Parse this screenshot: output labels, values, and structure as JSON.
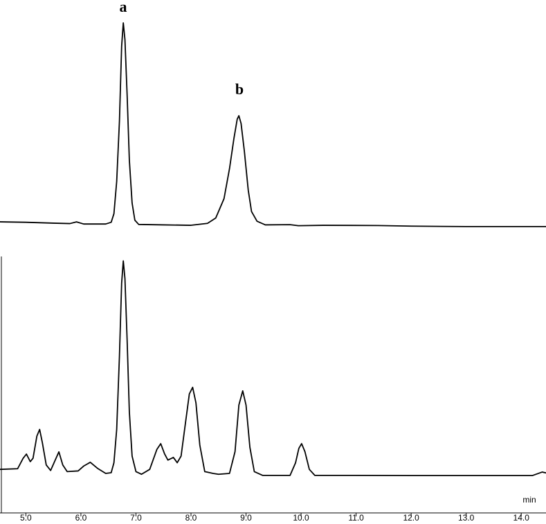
{
  "chart_data": [
    {
      "type": "line",
      "xlim": [
        4.53,
        14.45
      ],
      "ylim": [
        0,
        100
      ],
      "annotations": [
        "a",
        "b"
      ],
      "series": [
        {
          "color": "#000000",
          "x": [
            4.53,
            5.0,
            5.5,
            5.8,
            5.92,
            6.05,
            6.45,
            6.55,
            6.6,
            6.65,
            6.7,
            6.74,
            6.77,
            6.8,
            6.84,
            6.88,
            6.93,
            6.98,
            7.05,
            7.5,
            8.0,
            8.3,
            8.45,
            8.6,
            8.7,
            8.78,
            8.84,
            8.87,
            8.91,
            8.97,
            9.04,
            9.1,
            9.2,
            9.35,
            9.8,
            9.95,
            10.4,
            11.4,
            12.0,
            13.0,
            14.45
          ],
          "values": [
            3.2,
            3.0,
            2.6,
            2.4,
            3.2,
            2.2,
            2.2,
            3.0,
            7,
            22,
            50,
            85,
            95.8,
            88,
            62,
            32,
            12,
            4,
            2,
            1.8,
            1.6,
            2.5,
            5,
            14,
            28,
            42,
            51,
            52.6,
            49,
            36,
            18,
            8,
            3.5,
            1.8,
            1.9,
            1.4,
            1.6,
            1.5,
            1.2,
            1.0,
            1.0
          ]
        }
      ]
    },
    {
      "type": "line",
      "xlim": [
        4.53,
        14.45
      ],
      "ylim": [
        0,
        100
      ],
      "xlabel": "min",
      "xticks": [
        {
          "value": 5,
          "label": "5.0"
        },
        {
          "value": 6,
          "label": "6.0"
        },
        {
          "value": 7,
          "label": "7.0"
        },
        {
          "value": 8,
          "label": "8.0"
        },
        {
          "value": 9,
          "label": "9.0"
        },
        {
          "value": 10,
          "label": "10.0"
        },
        {
          "value": 11,
          "label": "11.0"
        },
        {
          "value": 12,
          "label": "12.0"
        },
        {
          "value": 13,
          "label": "13.0"
        },
        {
          "value": 14,
          "label": "14.0"
        }
      ],
      "series": [
        {
          "color": "#000000",
          "x": [
            4.53,
            4.85,
            4.95,
            5.01,
            5.08,
            5.13,
            5.2,
            5.25,
            5.3,
            5.37,
            5.45,
            5.53,
            5.6,
            5.67,
            5.75,
            5.95,
            6.05,
            6.17,
            6.3,
            6.45,
            6.55,
            6.6,
            6.65,
            6.7,
            6.74,
            6.77,
            6.8,
            6.84,
            6.88,
            6.93,
            7.0,
            7.1,
            7.25,
            7.38,
            7.45,
            7.52,
            7.58,
            7.68,
            7.75,
            7.82,
            7.9,
            7.97,
            8.03,
            8.09,
            8.16,
            8.25,
            8.4,
            8.5,
            8.7,
            8.8,
            8.87,
            8.94,
            9.0,
            9.07,
            9.15,
            9.3,
            9.8,
            9.9,
            9.96,
            10.01,
            10.07,
            10.15,
            10.25,
            11.0,
            12.0,
            13.0,
            14.2,
            14.38,
            14.45
          ],
          "values": [
            4.0,
            4.3,
            9,
            10.9,
            7.5,
            9,
            19,
            22,
            16,
            6,
            3.5,
            8,
            11.9,
            6,
            3,
            3.3,
            5.5,
            7.2,
            4.5,
            2.2,
            2.5,
            7,
            22,
            55,
            88,
            98,
            90,
            62,
            30,
            10,
            3,
            1.8,
            4,
            13,
            15.6,
            11,
            8.2,
            9.4,
            7,
            10,
            25,
            38,
            41,
            34,
            15,
            3,
            2.2,
            1.8,
            2.2,
            12,
            33,
            39.4,
            33,
            14,
            3,
            1.3,
            1.3,
            7,
            13.5,
            15.6,
            12,
            4,
            1.3,
            1.3,
            1.2,
            1.2,
            1.2,
            2.8,
            2.4
          ]
        }
      ]
    }
  ]
}
